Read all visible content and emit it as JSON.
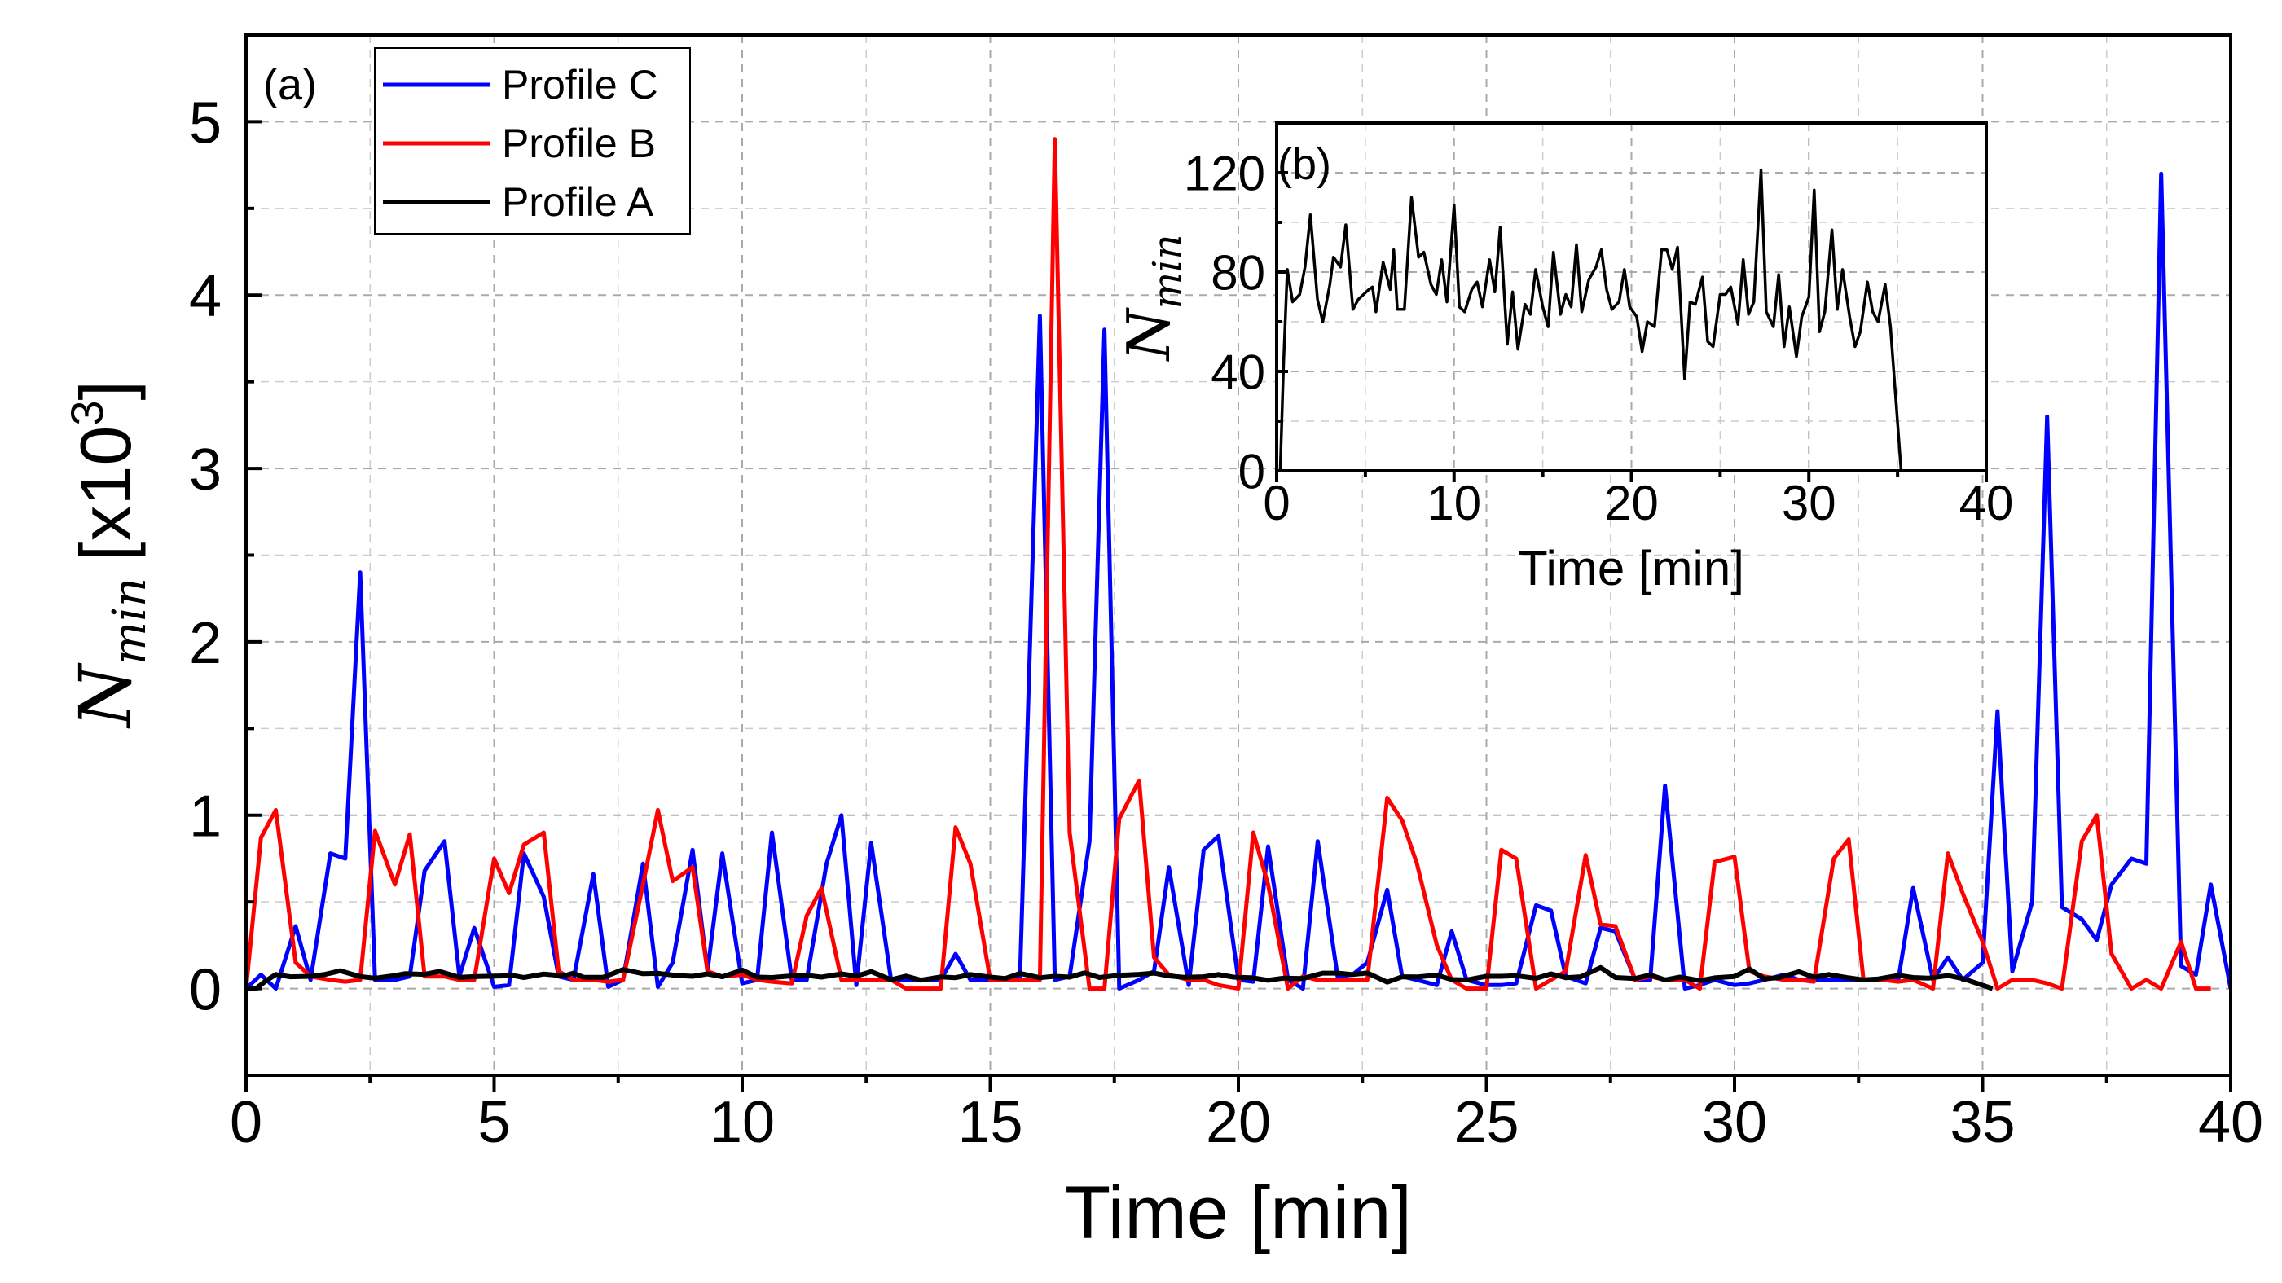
{
  "chart_data": [
    {
      "id": "main",
      "type": "line",
      "panel_label": "(a)",
      "xlabel": "Time [min]",
      "ylabel_main": "N",
      "ylabel_sub": "min",
      "ylabel_unit": "[x10",
      "ylabel_exp": "3",
      "ylabel_close": "]",
      "xlim": [
        0,
        40
      ],
      "ylim": [
        -0.5,
        5.5
      ],
      "xticks": [
        0,
        5,
        10,
        15,
        20,
        25,
        30,
        35,
        40
      ],
      "yticks": [
        0,
        1,
        2,
        3,
        4,
        5
      ],
      "grid": true,
      "legend_placement": "top-left",
      "series": [
        {
          "name": "Profile C",
          "color": "#0000ff",
          "x": [
            0,
            0.3,
            0.6,
            1,
            1.3,
            1.7,
            2,
            2.3,
            2.6,
            3,
            3.3,
            3.6,
            4,
            4.3,
            4.6,
            5,
            5.3,
            5.6,
            6,
            6.3,
            6.6,
            7,
            7.3,
            7.6,
            8,
            8.3,
            8.6,
            9,
            9.3,
            9.6,
            10,
            10.3,
            10.6,
            11,
            11.3,
            11.7,
            12,
            12.3,
            12.6,
            13,
            13.3,
            13.6,
            14,
            14.3,
            14.6,
            15,
            15.3,
            15.6,
            16,
            16.3,
            16.6,
            17,
            17.3,
            17.6,
            18,
            18.3,
            18.6,
            19,
            19.3,
            19.6,
            20,
            20.3,
            20.6,
            21,
            21.3,
            21.6,
            22,
            22.3,
            22.6,
            23,
            23.3,
            23.6,
            24,
            24.3,
            24.6,
            25,
            25.3,
            25.6,
            26,
            26.3,
            26.6,
            27,
            27.3,
            27.6,
            28,
            28.3,
            28.6,
            29,
            29.3,
            29.6,
            30,
            30.3,
            30.6,
            31,
            31.3,
            31.6,
            32,
            32.3,
            32.6,
            33,
            33.3,
            33.6,
            34,
            34.3,
            34.6,
            35,
            35.3,
            35.6,
            36,
            36.3,
            36.6,
            37,
            37.3,
            37.6,
            38,
            38.3,
            38.6,
            39,
            39.3,
            39.6,
            40
          ],
          "y": [
            0,
            0.08,
            0,
            0.36,
            0.05,
            0.78,
            0.75,
            2.4,
            0.05,
            0.05,
            0.07,
            0.68,
            0.85,
            0.07,
            0.35,
            0.01,
            0.02,
            0.78,
            0.53,
            0.07,
            0.05,
            0.66,
            0.01,
            0.05,
            0.72,
            0.01,
            0.15,
            0.8,
            0.1,
            0.78,
            0.03,
            0.05,
            0.9,
            0.05,
            0.05,
            0.72,
            1.0,
            0.02,
            0.84,
            0.05,
            0.05,
            0.05,
            0.05,
            0.2,
            0.05,
            0.05,
            0.05,
            0.07,
            3.88,
            0.05,
            0.07,
            0.85,
            3.8,
            0,
            0.05,
            0.1,
            0.7,
            0.02,
            0.8,
            0.88,
            0.05,
            0.04,
            0.82,
            0.05,
            0,
            0.85,
            0.07,
            0.08,
            0.15,
            0.57,
            0.07,
            0.05,
            0.02,
            0.33,
            0.05,
            0.02,
            0.02,
            0.03,
            0.48,
            0.45,
            0.07,
            0.03,
            0.35,
            0.33,
            0.05,
            0.05,
            1.17,
            0,
            0.02,
            0.05,
            0.02,
            0.03,
            0.05,
            0.08,
            0.05,
            0.05,
            0.05,
            0.05,
            0.05,
            0.05,
            0.05,
            0.58,
            0.05,
            0.18,
            0.05,
            0.15,
            1.6,
            0.1,
            0.5,
            3.3,
            0.47,
            0.4,
            0.28,
            0.6,
            0.75,
            0.72,
            4.7,
            0.13,
            0.08,
            0.6,
            0
          ]
        },
        {
          "name": "Profile B",
          "color": "#ff0000",
          "x": [
            0,
            0.3,
            0.6,
            1,
            1.3,
            1.7,
            2,
            2.3,
            2.6,
            3,
            3.3,
            3.6,
            4,
            4.3,
            4.6,
            5,
            5.3,
            5.6,
            6,
            6.3,
            6.6,
            7,
            7.3,
            7.6,
            8,
            8.3,
            8.6,
            9,
            9.3,
            9.6,
            10,
            10.3,
            10.6,
            11,
            11.3,
            11.6,
            12,
            12.3,
            12.6,
            13,
            13.3,
            13.6,
            14,
            14.3,
            14.6,
            15,
            15.3,
            15.6,
            16,
            16.3,
            16.6,
            17,
            17.3,
            17.6,
            18,
            18.3,
            18.6,
            19,
            19.3,
            19.6,
            20,
            20.3,
            20.6,
            21,
            21.3,
            21.6,
            22,
            22.3,
            22.6,
            23,
            23.3,
            23.6,
            24,
            24.3,
            24.6,
            25,
            25.3,
            25.6,
            26,
            26.3,
            26.6,
            27,
            27.3,
            27.6,
            28,
            28.3,
            28.6,
            29,
            29.3,
            29.6,
            30,
            30.3,
            30.6,
            31,
            31.3,
            31.6,
            32,
            32.3,
            32.6,
            33,
            33.3,
            33.6,
            34,
            34.3,
            34.6,
            35,
            35.3,
            35.6,
            36,
            36.3,
            36.6,
            37,
            37.3,
            37.6,
            38,
            38.3,
            38.6,
            39,
            39.3,
            39.6
          ],
          "y": [
            0,
            0.87,
            1.03,
            0.15,
            0.07,
            0.05,
            0.04,
            0.05,
            0.91,
            0.6,
            0.89,
            0.07,
            0.07,
            0.05,
            0.05,
            0.75,
            0.55,
            0.83,
            0.9,
            0.1,
            0.05,
            0.05,
            0.04,
            0.05,
            0.6,
            1.03,
            0.62,
            0.7,
            0.1,
            0.07,
            0.08,
            0.05,
            0.04,
            0.03,
            0.42,
            0.58,
            0.05,
            0.05,
            0.05,
            0.05,
            0,
            0,
            0,
            0.93,
            0.72,
            0.05,
            0.05,
            0.05,
            0.05,
            4.9,
            0.9,
            0,
            0,
            0.98,
            1.2,
            0.18,
            0.08,
            0.05,
            0.05,
            0.02,
            0,
            0.9,
            0.6,
            0,
            0.07,
            0.05,
            0.05,
            0.05,
            0.05,
            1.1,
            0.97,
            0.72,
            0.25,
            0.05,
            0,
            0,
            0.8,
            0.75,
            0,
            0.05,
            0.1,
            0.77,
            0.37,
            0.36,
            0.05,
            0.07,
            0.05,
            0.05,
            0,
            0.73,
            0.76,
            0.1,
            0.07,
            0.05,
            0.05,
            0.04,
            0.75,
            0.86,
            0.05,
            0.05,
            0.04,
            0.05,
            0,
            0.78,
            0.55,
            0.27,
            0,
            0.05,
            0.05,
            0.03,
            0,
            0.85,
            1.0,
            0.2,
            0,
            0.05,
            0,
            0.27,
            0,
            0
          ]
        },
        {
          "name": "Profile A",
          "color": "#000000",
          "source": "inset",
          "scale": 0.001
        }
      ]
    },
    {
      "id": "inset",
      "type": "line",
      "panel_label": "(b)",
      "xlabel": "Time [min]",
      "ylabel_main": "N",
      "ylabel_sub": "min",
      "xlim": [
        0,
        40
      ],
      "ylim": [
        0,
        140
      ],
      "xticks": [
        0,
        10,
        20,
        30,
        40
      ],
      "yticks": [
        0,
        40,
        80,
        120
      ],
      "grid": true,
      "series": [
        {
          "name": "Profile A",
          "color": "#000000",
          "x": [
            0,
            0.2,
            0.4,
            0.6,
            0.9,
            1.3,
            1.6,
            1.9,
            2.3,
            2.6,
            3,
            3.2,
            3.6,
            3.9,
            4.3,
            4.6,
            5.2,
            5.4,
            5.6,
            6,
            6.4,
            6.6,
            6.8,
            7.2,
            7.6,
            8,
            8.3,
            8.7,
            9,
            9.3,
            9.6,
            10,
            10.3,
            10.6,
            11,
            11.3,
            11.6,
            12,
            12.3,
            12.6,
            13,
            13.3,
            13.6,
            14,
            14.3,
            14.6,
            15,
            15.3,
            15.6,
            16,
            16.3,
            16.6,
            16.9,
            17.2,
            17.6,
            18,
            18.3,
            18.6,
            18.9,
            19.3,
            19.6,
            19.9,
            20.3,
            20.6,
            20.9,
            21.3,
            21.7,
            22,
            22.3,
            22.6,
            23,
            23.3,
            23.6,
            24,
            24.3,
            24.6,
            25,
            25.3,
            25.6,
            26,
            26.3,
            26.6,
            26.9,
            27.3,
            27.6,
            28,
            28.3,
            28.6,
            28.9,
            29.3,
            29.6,
            30,
            30.3,
            30.6,
            30.9,
            31.3,
            31.6,
            31.9,
            32.3,
            32.6,
            32.9,
            33.3,
            33.6,
            33.9,
            34.3,
            34.6,
            35.2
          ],
          "y": [
            0,
            0,
            45,
            81,
            68,
            71,
            82,
            103,
            69,
            60,
            75,
            86,
            82,
            99,
            65,
            69,
            73,
            74,
            64,
            84,
            73,
            89,
            65,
            65,
            110,
            86,
            88,
            75,
            71,
            85,
            68,
            107,
            66,
            64,
            73,
            76,
            66,
            85,
            72,
            98,
            51,
            72,
            49,
            67,
            63,
            81,
            66,
            58,
            88,
            63,
            71,
            66,
            91,
            64,
            77,
            82,
            89,
            73,
            65,
            68,
            81,
            66,
            62,
            48,
            60,
            58,
            89,
            89,
            81,
            90,
            37,
            68,
            67,
            78,
            52,
            50,
            71,
            71,
            74,
            59,
            85,
            63,
            68,
            121,
            64,
            58,
            79,
            50,
            66,
            46,
            62,
            70,
            113,
            56,
            64,
            97,
            65,
            81,
            62,
            50,
            56,
            76,
            64,
            60,
            75,
            58,
            0
          ]
        }
      ]
    }
  ]
}
